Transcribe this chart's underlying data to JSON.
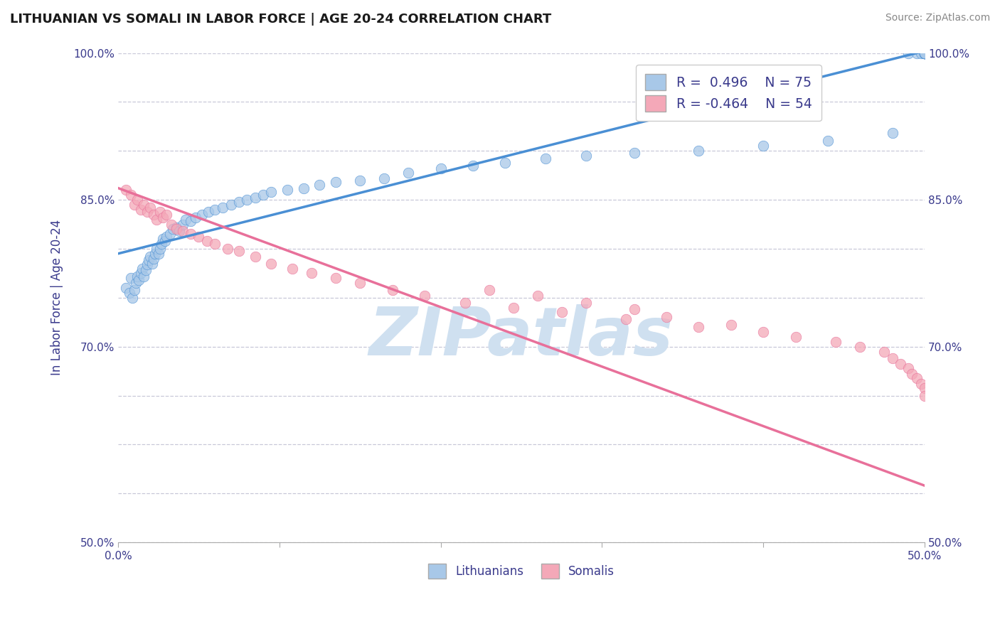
{
  "title": "LITHUANIAN VS SOMALI IN LABOR FORCE | AGE 20-24 CORRELATION CHART",
  "source_text": "Source: ZipAtlas.com",
  "ylabel": "In Labor Force | Age 20-24",
  "xlabel": "",
  "legend_label_1": "Lithuanians",
  "legend_label_2": "Somalis",
  "R1": 0.496,
  "N1": 75,
  "R2": -0.464,
  "N2": 54,
  "x_min": 0.0,
  "x_max": 0.5,
  "y_min": 0.5,
  "y_max": 1.0,
  "y_ticks": [
    0.5,
    0.55,
    0.6,
    0.65,
    0.7,
    0.75,
    0.8,
    0.85,
    0.9,
    0.95,
    1.0
  ],
  "y_tick_labels": [
    "50.0%",
    "",
    "",
    "",
    "70.0%",
    "",
    "",
    "85.0%",
    "",
    "",
    "100.0%"
  ],
  "color_lithuanian": "#a8c8e8",
  "color_somali": "#f4a8b8",
  "color_line_lithuanian": "#4a8fd4",
  "color_line_somali": "#e8709a",
  "watermark_color": "#cfe0f0",
  "background_color": "#ffffff",
  "grid_color": "#c8c8d8",
  "scatter_alpha": 0.75,
  "scatter_size": 110,
  "lithuanian_x": [
    0.005,
    0.007,
    0.008,
    0.009,
    0.01,
    0.011,
    0.012,
    0.013,
    0.014,
    0.015,
    0.016,
    0.017,
    0.018,
    0.019,
    0.02,
    0.021,
    0.022,
    0.023,
    0.024,
    0.025,
    0.026,
    0.027,
    0.028,
    0.029,
    0.03,
    0.032,
    0.034,
    0.036,
    0.038,
    0.04,
    0.042,
    0.045,
    0.048,
    0.052,
    0.056,
    0.06,
    0.065,
    0.07,
    0.075,
    0.08,
    0.085,
    0.09,
    0.095,
    0.105,
    0.115,
    0.125,
    0.135,
    0.15,
    0.165,
    0.18,
    0.2,
    0.22,
    0.24,
    0.265,
    0.29,
    0.32,
    0.36,
    0.4,
    0.44,
    0.48,
    0.49,
    0.495,
    0.498,
    0.5,
    0.5,
    0.5,
    0.5,
    0.5,
    0.5,
    0.5,
    0.5,
    0.5,
    0.5,
    0.5,
    0.5
  ],
  "lithuanian_y": [
    0.76,
    0.755,
    0.77,
    0.75,
    0.758,
    0.765,
    0.772,
    0.768,
    0.775,
    0.78,
    0.772,
    0.778,
    0.784,
    0.788,
    0.792,
    0.785,
    0.79,
    0.795,
    0.8,
    0.795,
    0.8,
    0.805,
    0.81,
    0.808,
    0.812,
    0.815,
    0.82,
    0.822,
    0.818,
    0.825,
    0.83,
    0.828,
    0.832,
    0.835,
    0.838,
    0.84,
    0.842,
    0.845,
    0.848,
    0.85,
    0.852,
    0.855,
    0.858,
    0.86,
    0.862,
    0.865,
    0.868,
    0.87,
    0.872,
    0.878,
    0.882,
    0.885,
    0.888,
    0.892,
    0.895,
    0.898,
    0.9,
    0.905,
    0.91,
    0.918,
    1.0,
    1.0,
    1.0,
    1.0,
    1.0,
    1.0,
    1.0,
    1.0,
    1.0,
    1.0,
    1.0,
    1.0,
    1.0,
    1.0,
    1.0
  ],
  "somali_x": [
    0.005,
    0.008,
    0.01,
    0.012,
    0.014,
    0.016,
    0.018,
    0.02,
    0.022,
    0.024,
    0.026,
    0.028,
    0.03,
    0.033,
    0.036,
    0.04,
    0.045,
    0.05,
    0.055,
    0.06,
    0.068,
    0.075,
    0.085,
    0.095,
    0.108,
    0.12,
    0.135,
    0.15,
    0.17,
    0.19,
    0.215,
    0.245,
    0.275,
    0.315,
    0.36,
    0.4,
    0.42,
    0.445,
    0.46,
    0.475,
    0.48,
    0.485,
    0.49,
    0.492,
    0.495,
    0.498,
    0.5,
    0.34,
    0.38,
    0.32,
    0.29,
    0.26,
    0.23,
    0.5
  ],
  "somali_y": [
    0.86,
    0.855,
    0.845,
    0.85,
    0.84,
    0.845,
    0.838,
    0.842,
    0.835,
    0.83,
    0.838,
    0.832,
    0.835,
    0.825,
    0.82,
    0.818,
    0.815,
    0.812,
    0.808,
    0.805,
    0.8,
    0.798,
    0.792,
    0.785,
    0.78,
    0.775,
    0.77,
    0.765,
    0.758,
    0.752,
    0.745,
    0.74,
    0.735,
    0.728,
    0.72,
    0.715,
    0.71,
    0.705,
    0.7,
    0.695,
    0.688,
    0.682,
    0.678,
    0.672,
    0.668,
    0.662,
    0.658,
    0.73,
    0.722,
    0.738,
    0.745,
    0.752,
    0.758,
    0.65
  ]
}
